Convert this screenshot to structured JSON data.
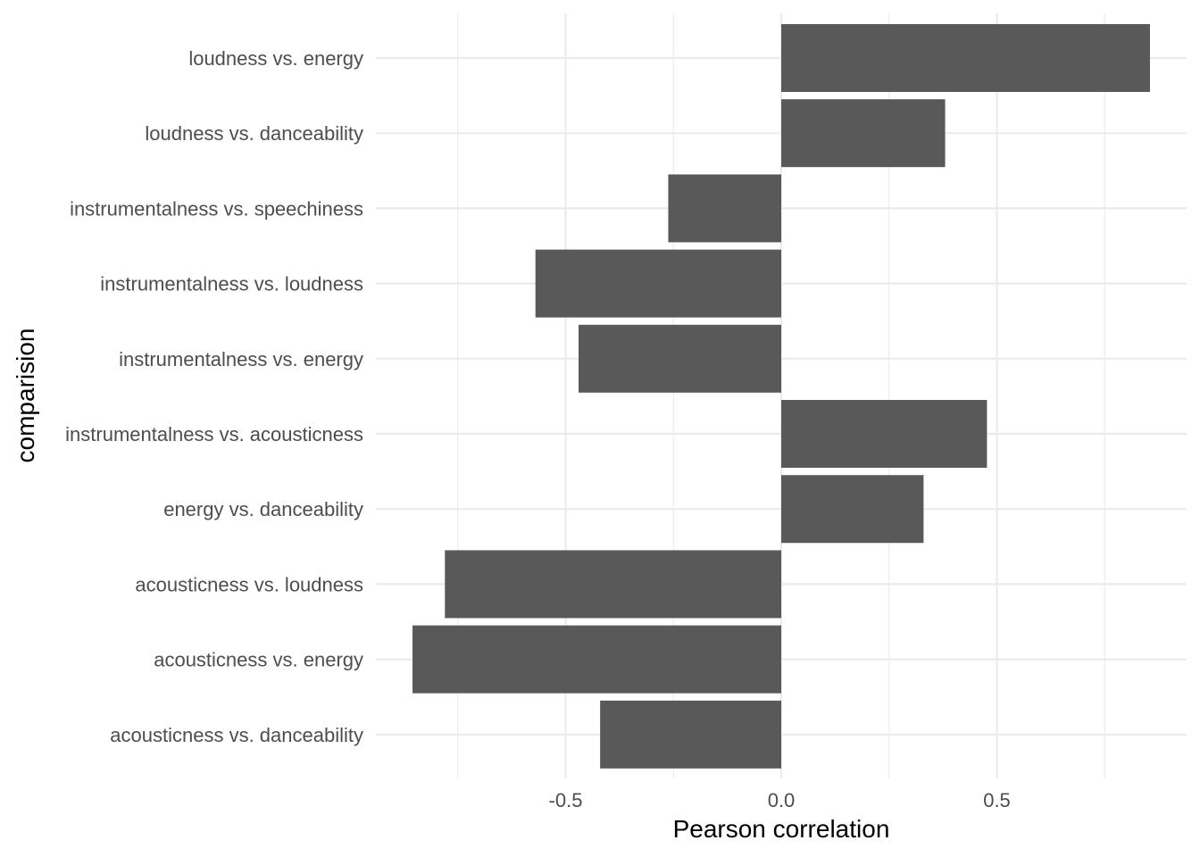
{
  "chart_data": {
    "type": "bar",
    "orientation": "horizontal",
    "xlabel": "Pearson correlation",
    "ylabel": "comparision",
    "xlim": [
      -0.9,
      0.9
    ],
    "x_ticks": [
      -0.5,
      0.0,
      0.5
    ],
    "x_tick_labels": [
      "-0.5",
      "0.0",
      "0.5"
    ],
    "grid": true,
    "categories": [
      "loudness vs. energy",
      "loudness vs. danceability",
      "instrumentalness vs. speechiness",
      "instrumentalness vs. loudness",
      "instrumentalness vs. energy",
      "instrumentalness vs. acousticness",
      "energy vs. danceability",
      "acousticness vs. loudness",
      "acousticness vs. energy",
      "acousticness vs. danceability"
    ],
    "values": [
      0.855,
      0.38,
      -0.262,
      -0.57,
      -0.47,
      0.477,
      0.33,
      -0.78,
      -0.855,
      -0.42
    ],
    "bar_color": "#595959",
    "grid_color": "#ebebeb",
    "background": "#ffffff"
  }
}
